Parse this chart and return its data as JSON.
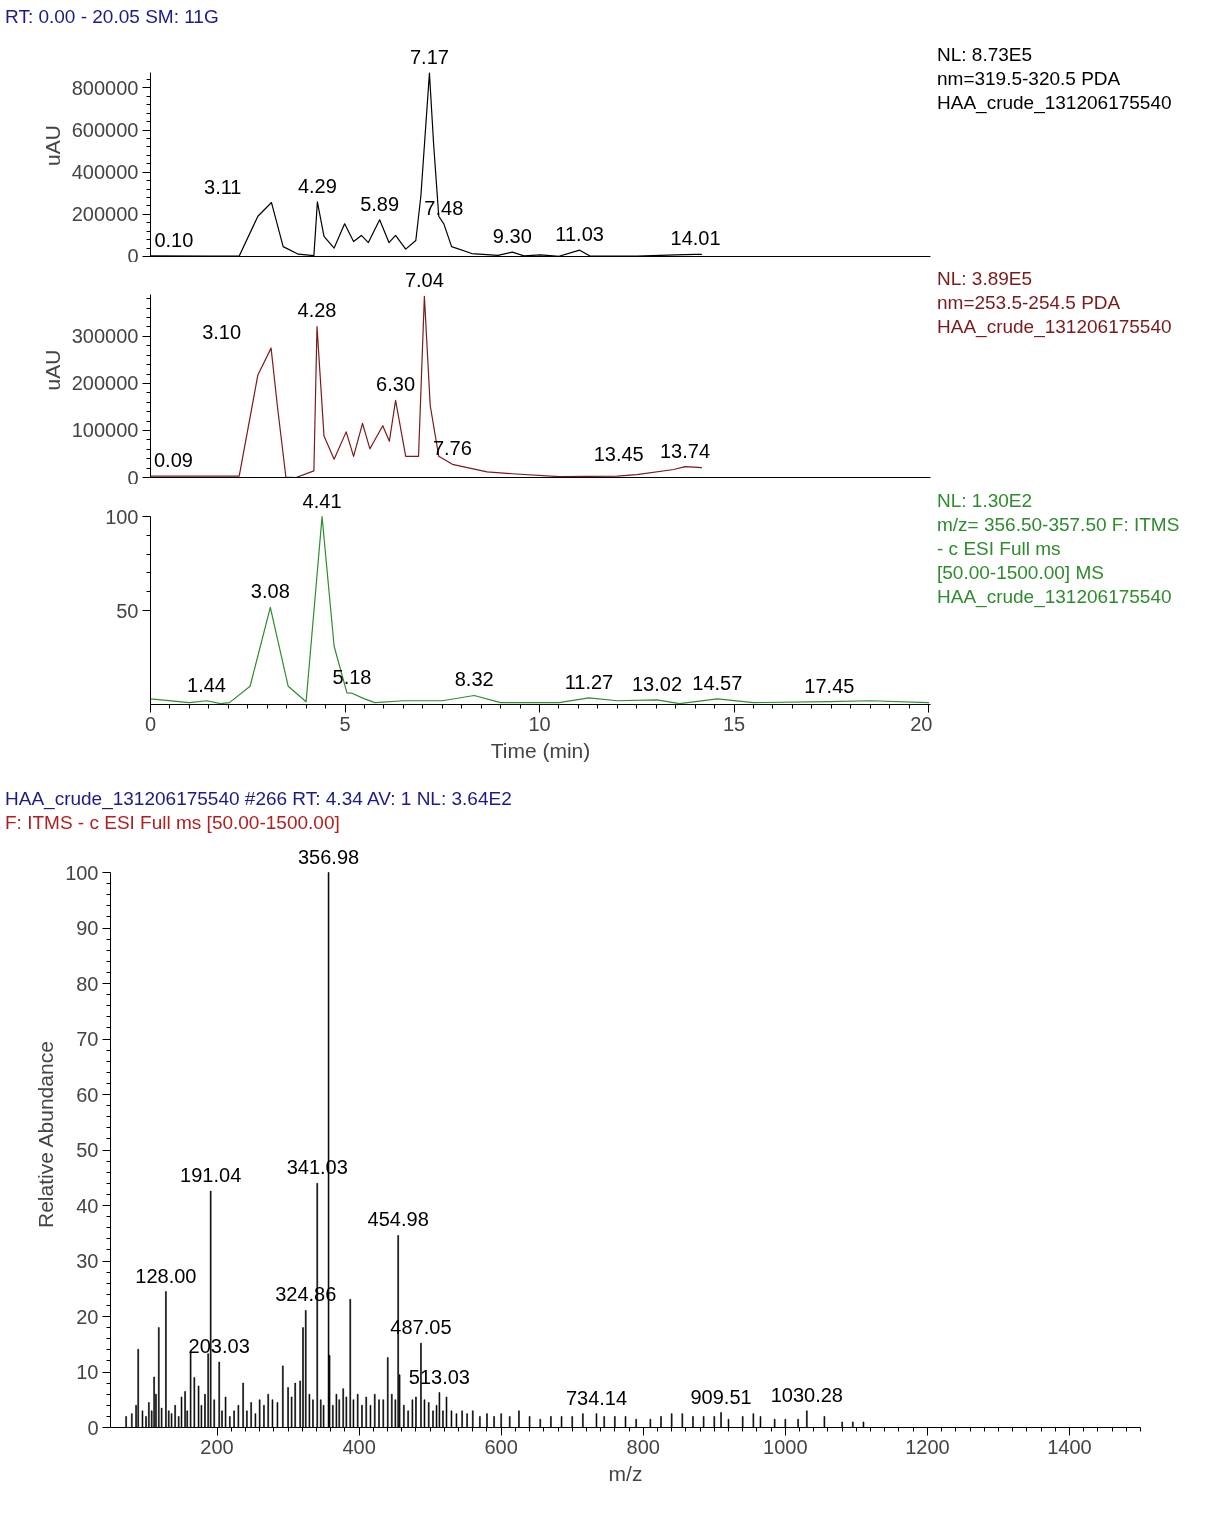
{
  "chart_data": [
    {
      "type": "line",
      "title": "RT: 0.00 - 20.05   SM: 11G",
      "ylabel": "uAU",
      "xlim": [
        0,
        20.05
      ],
      "ylim": [
        0,
        873000
      ],
      "yticks": [
        0,
        200000,
        400000,
        600000,
        800000
      ],
      "tick_labels": "y",
      "grid": false,
      "series": [
        {
          "color": "#000000",
          "x": [
            0,
            1.5,
            2.28,
            2.76,
            3.11,
            3.41,
            3.8,
            4.2,
            4.29,
            4.46,
            4.72,
            4.99,
            5.22,
            5.42,
            5.6,
            5.89,
            6.13,
            6.3,
            6.56,
            6.82,
            6.95,
            7.17,
            7.28,
            7.41,
            7.54,
            7.74,
            8.26,
            8.93,
            9.3,
            9.6,
            10.03,
            10.5,
            11.03,
            11.3,
            12.5,
            13.5,
            14.01,
            14.16
          ],
          "values": [
            3000,
            2000,
            2000,
            191000,
            256000,
            47000,
            11000,
            4000,
            259000,
            95000,
            40000,
            155000,
            71000,
            100000,
            66000,
            174000,
            66000,
            100000,
            35000,
            76000,
            287000,
            870000,
            527000,
            191000,
            155000,
            47000,
            14000,
            5000,
            21000,
            3000,
            8000,
            1000,
            30000,
            2000,
            2000,
            8000,
            10000,
            10000
          ]
        }
      ],
      "annotations": [
        "NL: 8.73E5",
        "nm=319.5-320.5  PDA",
        "HAA_crude_131206175540",
        {
          "text": "0.10",
          "x": 0.1,
          "y": 3000
        },
        {
          "text": "3.11",
          "x": 3.11,
          "y": 256000
        },
        {
          "text": "4.29",
          "x": 4.29,
          "y": 259000
        },
        {
          "text": "5.89",
          "x": 5.89,
          "y": 174000
        },
        {
          "text": "7.17",
          "x": 7.17,
          "y": 870000
        },
        {
          "text": "7.48",
          "x": 7.54,
          "y": 155000
        },
        {
          "text": "9.30",
          "x": 9.3,
          "y": 21000
        },
        {
          "text": "11.03",
          "x": 11.03,
          "y": 30000
        },
        {
          "text": "14.01",
          "x": 14.01,
          "y": 10000
        }
      ]
    },
    {
      "type": "line",
      "ylabel": "uAU",
      "xlim": [
        0,
        20.05
      ],
      "ylim": [
        0,
        389000
      ],
      "yticks": [
        0,
        100000,
        200000,
        300000
      ],
      "tick_labels": "y",
      "grid": false,
      "series": [
        {
          "color": "#7b1a1a",
          "x": [
            0,
            2.28,
            2.76,
            3.1,
            3.26,
            3.48,
            3.74,
            4.2,
            4.28,
            4.46,
            4.72,
            5.03,
            5.22,
            5.45,
            5.64,
            5.97,
            6.14,
            6.3,
            6.56,
            6.89,
            7.04,
            7.19,
            7.41,
            7.76,
            8.65,
            9.3,
            10.5,
            12.0,
            12.5,
            13.45,
            13.74,
            14.16
          ],
          "values": [
            3000,
            3000,
            218000,
            275000,
            153000,
            1000,
            0,
            14000,
            321000,
            88000,
            39000,
            97000,
            45000,
            115000,
            61000,
            110000,
            77000,
            164000,
            45000,
            45000,
            385000,
            153000,
            45000,
            28000,
            12000,
            8000,
            2000,
            3000,
            6000,
            17000,
            23000,
            21000
          ]
        }
      ],
      "annotations": [
        "NL: 3.89E5",
        "nm=253.5-254.5  PDA",
        "HAA_crude_131206175540",
        {
          "text": "0.09",
          "x": 0.09,
          "y": 3000
        },
        {
          "text": "3.10",
          "x": 3.1,
          "y": 275000
        },
        {
          "text": "4.28",
          "x": 4.28,
          "y": 321000
        },
        {
          "text": "6.30",
          "x": 6.3,
          "y": 164000
        },
        {
          "text": "7.04",
          "x": 7.04,
          "y": 385000
        },
        {
          "text": "7.76",
          "x": 7.76,
          "y": 28000
        },
        {
          "text": "13.45",
          "x": 13.45,
          "y": 17000
        },
        {
          "text": "13.74",
          "x": 13.74,
          "y": 23000
        }
      ]
    },
    {
      "type": "line",
      "xlabel": "Time (min)",
      "xlim": [
        0,
        20.05
      ],
      "ylim": [
        0,
        100
      ],
      "xticks": [
        0,
        5,
        10,
        15,
        20
      ],
      "yticks": [
        50,
        100
      ],
      "grid": false,
      "series": [
        {
          "color": "#2e8b2e",
          "x": [
            0,
            1.0,
            1.44,
            1.8,
            2.03,
            2.56,
            3.08,
            3.54,
            4.0,
            4.41,
            4.72,
            5.05,
            5.18,
            5.5,
            5.77,
            6.5,
            7.5,
            8.32,
            9.0,
            10.5,
            11.27,
            12.0,
            13.02,
            13.6,
            14.57,
            15.5,
            17.45,
            18.5,
            20.0
          ],
          "values": [
            3,
            1,
            2,
            0.5,
            1,
            9.7,
            51.7,
            9.7,
            1.5,
            100,
            31,
            6.2,
            6,
            3,
            1,
            2,
            2,
            4.8,
            1,
            1,
            3.5,
            2,
            2.5,
            0.5,
            3,
            1,
            1.5,
            2,
            1
          ]
        }
      ],
      "annotations": [
        "NL: 1.30E2",
        "m/z= 356.50-357.50 F: ITMS",
        "- c ESI Full ms",
        "[50.00-1500.00]  MS",
        "HAA_crude_131206175540",
        {
          "text": "1.44",
          "x": 1.44,
          "y": 2
        },
        {
          "text": "3.08",
          "x": 3.08,
          "y": 51.7
        },
        {
          "text": "4.41",
          "x": 4.41,
          "y": 100
        },
        {
          "text": "5.18",
          "x": 5.18,
          "y": 6
        },
        {
          "text": "8.32",
          "x": 8.32,
          "y": 4.8
        },
        {
          "text": "11.27",
          "x": 11.27,
          "y": 3.5
        },
        {
          "text": "13.02",
          "x": 13.02,
          "y": 2.5
        },
        {
          "text": "14.57",
          "x": 14.57,
          "y": 3
        },
        {
          "text": "17.45",
          "x": 17.45,
          "y": 1.5
        }
      ]
    },
    {
      "type": "bar",
      "title": "HAA_crude_131206175540 #266   RT: 4.34   AV: 1   NL: 3.64E2",
      "subtitle": "F:  ITMS - c ESI Full ms [50.00-1500.00]",
      "xlabel": "m/z",
      "ylabel": "Relative Abundance",
      "xlim": [
        50,
        1500
      ],
      "ylim": [
        0,
        100
      ],
      "xticks": [
        200,
        400,
        600,
        800,
        1000,
        1200,
        1400
      ],
      "yticks": [
        0,
        10,
        20,
        30,
        40,
        50,
        60,
        70,
        80,
        90,
        100
      ],
      "grid": false,
      "series": [
        {
          "color": "#000000",
          "x": [
            72,
            80,
            86,
            89,
            95,
            100,
            104,
            108,
            111.4,
            114,
            118,
            122,
            128,
            132,
            136,
            141,
            146,
            150,
            155,
            158,
            162.8,
            168,
            174,
            178,
            183,
            187.5,
            191.04,
            196,
            203.03,
            207,
            212,
            218,
            224,
            230,
            236.7,
            242,
            248,
            254,
            260,
            266,
            272,
            278,
            285,
            292.6,
            300,
            305,
            310,
            317,
            321,
            324.86,
            330,
            335,
            341.03,
            346,
            350,
            356.98,
            358.4,
            363,
            368,
            372,
            377.6,
            382,
            387.5,
            392,
            398,
            404,
            410,
            416,
            422,
            428,
            434,
            440.3,
            446,
            451,
            454.98,
            457,
            463,
            469,
            475,
            480,
            487.05,
            492,
            498,
            504,
            509,
            513.03,
            518,
            523,
            530,
            537,
            545,
            552,
            560,
            570,
            580,
            590,
            600,
            612,
            625,
            640,
            655,
            670,
            685,
            700,
            715,
            734.14,
            745,
            760,
            775,
            790,
            810,
            825,
            840,
            855,
            870,
            885,
            900,
            909.51,
            920,
            940,
            955,
            965,
            985,
            1000,
            1018,
            1030.28,
            1055,
            1080,
            1095,
            1110
          ],
          "values": [
            2,
            2.5,
            4,
            14.1,
            3,
            2,
            4.5,
            3,
            9.1,
            6,
            18,
            3.5,
            24.5,
            3,
            2.5,
            4,
            2,
            5.5,
            6.5,
            3,
            13.6,
            9,
            7.5,
            4,
            6,
            13.3,
            42.6,
            5,
            11.8,
            3,
            5.5,
            2,
            3,
            4,
            8,
            3,
            4.5,
            2.5,
            5,
            4,
            6,
            5,
            4.5,
            11.1,
            7.2,
            5.5,
            8,
            8.4,
            18,
            21.1,
            6,
            5,
            44,
            5,
            4,
            100,
            13,
            4,
            6,
            5,
            7,
            5.5,
            23.1,
            5,
            6,
            4,
            5.5,
            4,
            6,
            5,
            5,
            12.6,
            6,
            5,
            34.6,
            9.5,
            4,
            3,
            5,
            5.5,
            15.2,
            5,
            4.5,
            3,
            4,
            6.3,
            3,
            5.5,
            3,
            2.5,
            3,
            2.5,
            3,
            2,
            2.5,
            2,
            2.5,
            2,
            3,
            2,
            1.5,
            2,
            2,
            2,
            2.5,
            2.5,
            2,
            2,
            2,
            1.5,
            1.5,
            2,
            2.5,
            2.5,
            2,
            2,
            2,
            2.7,
            1.5,
            2,
            2.5,
            2,
            1.5,
            1.5,
            1.5,
            3,
            2,
            1,
            1,
            1
          ]
        }
      ],
      "annotations": [
        {
          "text": "356.98",
          "x": 356.98,
          "y": 100
        },
        {
          "text": "341.03",
          "x": 341.03,
          "y": 44
        },
        {
          "text": "191.04",
          "x": 191.04,
          "y": 42.6
        },
        {
          "text": "454.98",
          "x": 454.98,
          "y": 34.6
        },
        {
          "text": "128.00",
          "x": 128,
          "y": 24.5
        },
        {
          "text": "324.86",
          "x": 324.86,
          "y": 21.1
        },
        {
          "text": "487.05",
          "x": 487.05,
          "y": 15.2
        },
        {
          "text": "203.03",
          "x": 203.03,
          "y": 11.8
        },
        {
          "text": "513.03",
          "x": 513.03,
          "y": 6.3
        },
        {
          "text": "734.14",
          "x": 734.14,
          "y": 2.5
        },
        {
          "text": "909.51",
          "x": 909.51,
          "y": 2.7
        },
        {
          "text": "1030.28",
          "x": 1030.28,
          "y": 3.0
        }
      ]
    }
  ]
}
